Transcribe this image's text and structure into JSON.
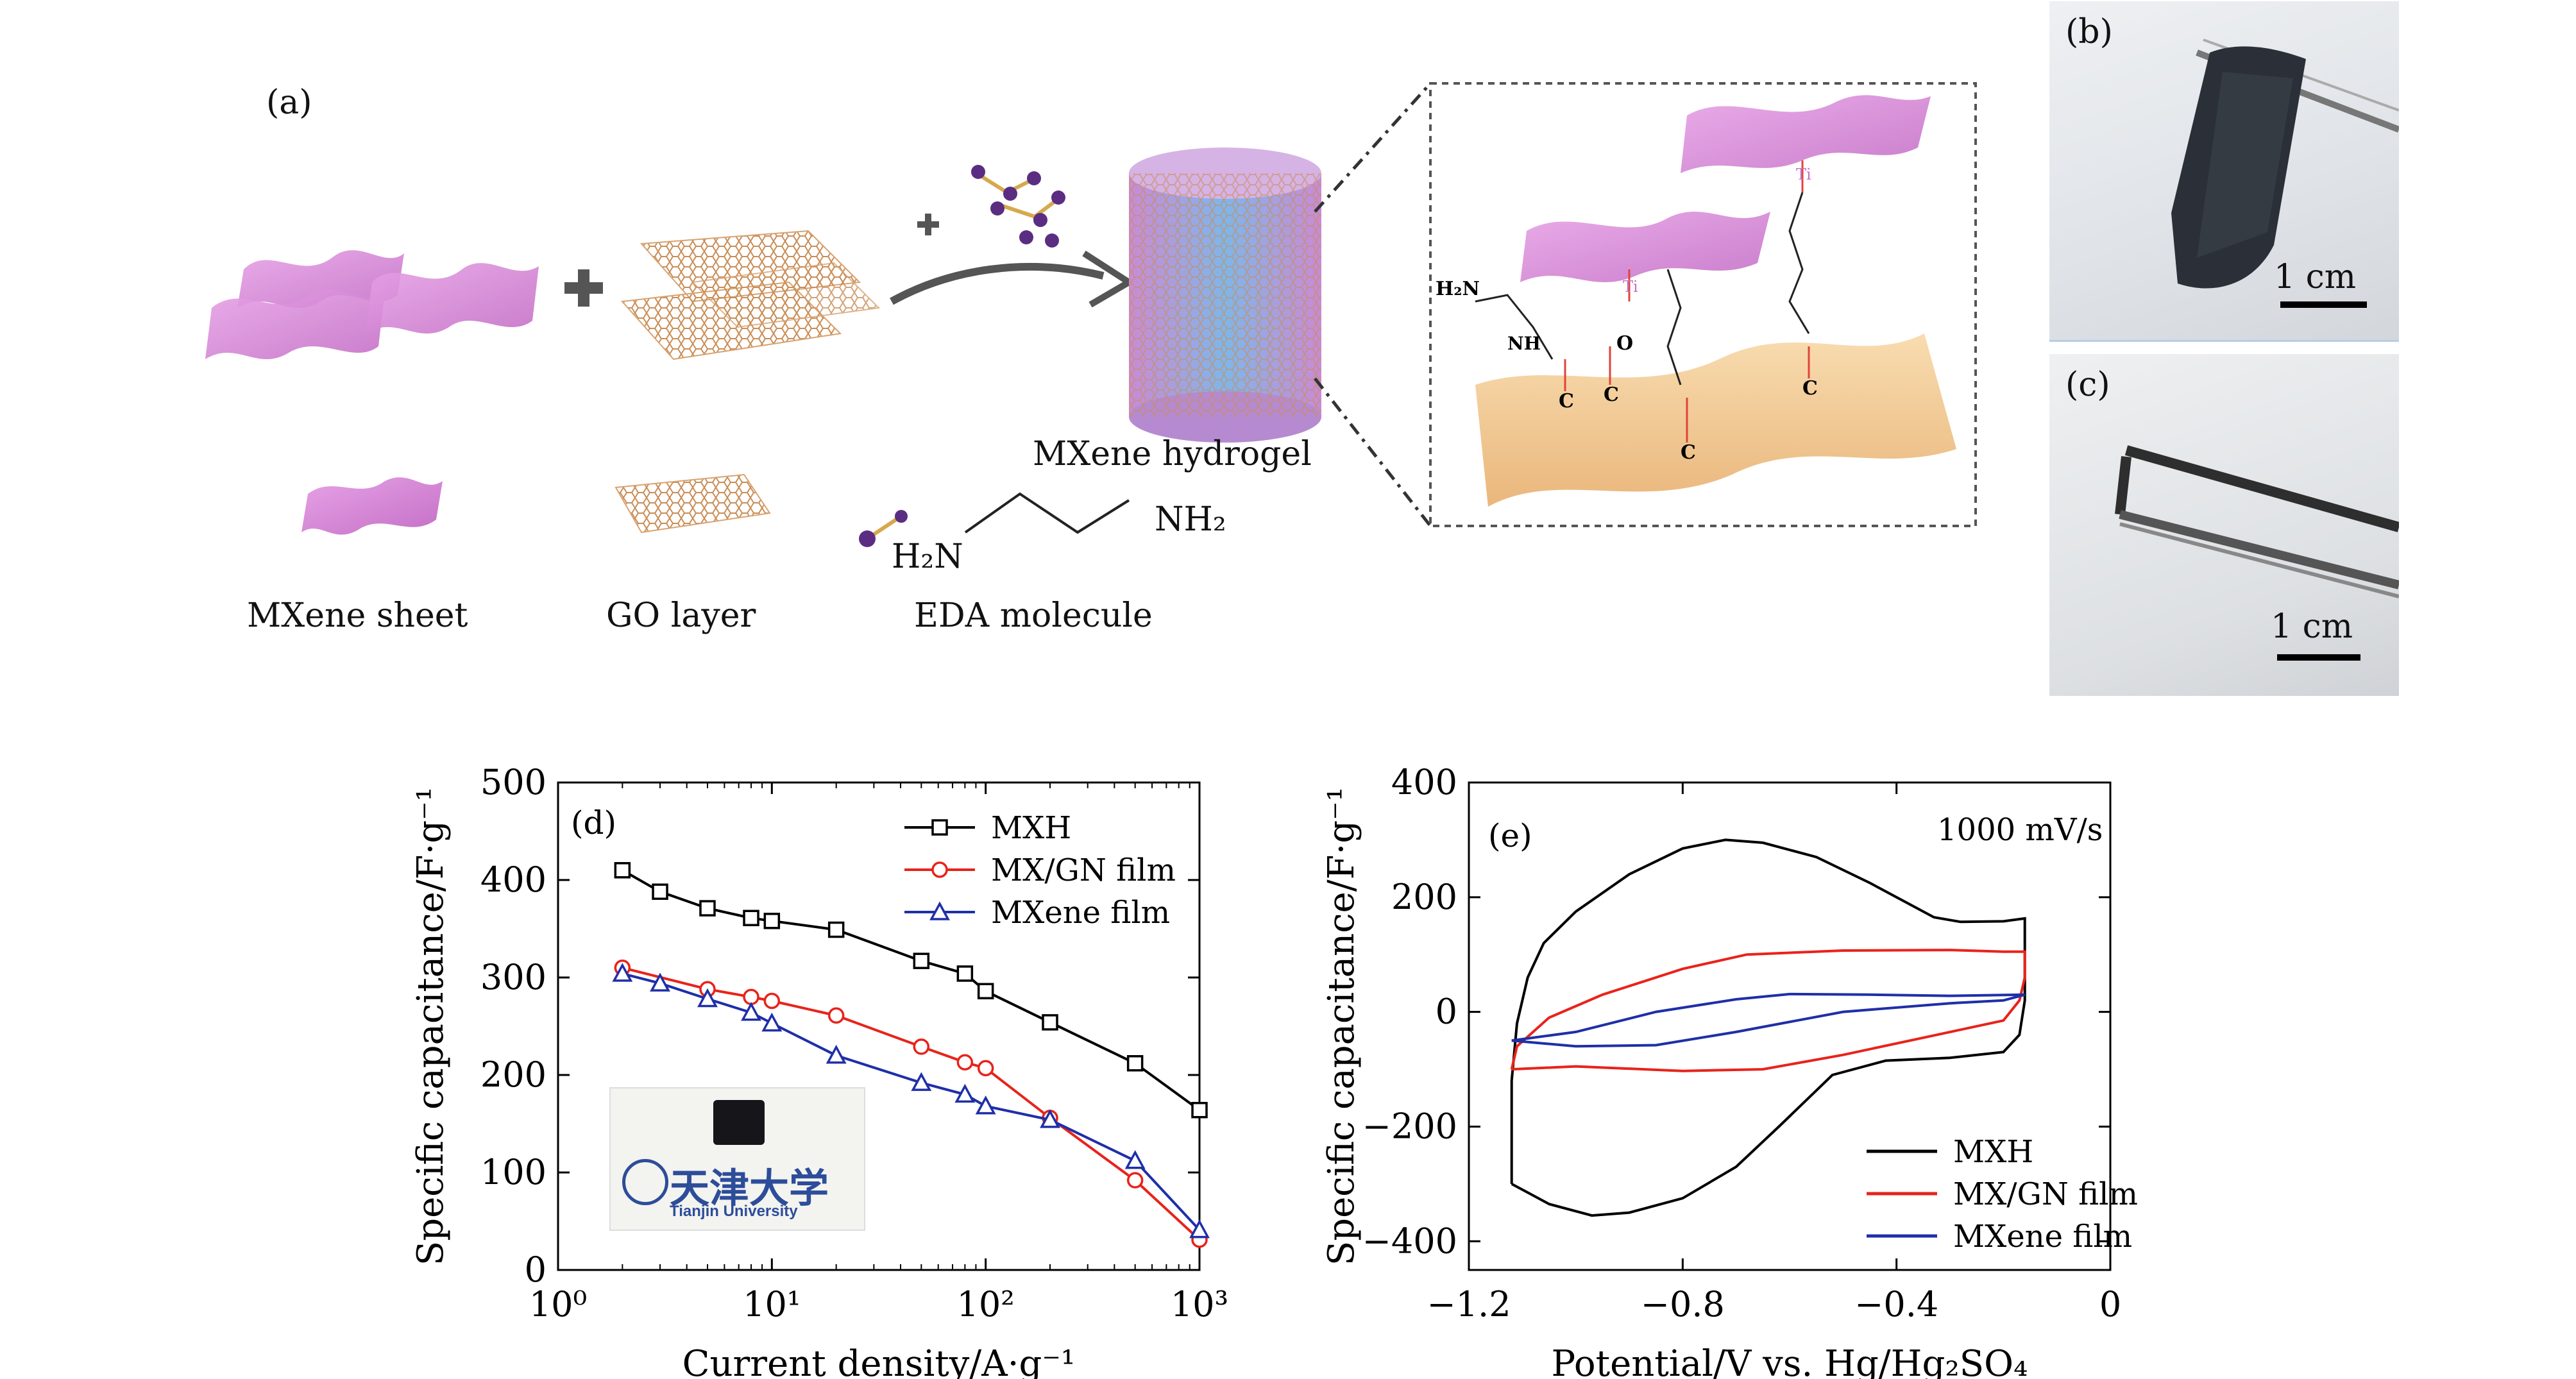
{
  "panel_a": {
    "label": "(a)",
    "captions": {
      "mxene_sheet": "MXene sheet",
      "go_layer": "GO layer",
      "eda_molecule": "EDA molecule",
      "hydrogel": "MXene hydrogel"
    },
    "eda_formula": {
      "left": "H₂N",
      "right": "NH₂"
    },
    "inset_atoms": {
      "ti": "Ti",
      "o": "O",
      "c": "C",
      "nh": "NH",
      "h2n": "H₂N"
    }
  },
  "panel_b": {
    "label": "(b)",
    "scale": "1 cm"
  },
  "panel_c": {
    "label": "(c)",
    "scale": "1 cm"
  },
  "panel_d": {
    "label": "(d)",
    "logo_text": "天津大学",
    "logo_subtext": "Tianjin University"
  },
  "panel_e": {
    "label": "(e)",
    "annotation": "1000 mV/s"
  },
  "colors": {
    "mxh": "#000000",
    "mxgn": "#e8231b",
    "mxene": "#1f2fa8",
    "mxene_pink": "#d889d8",
    "go_tan": "#d9a271"
  },
  "chart_data": [
    {
      "type": "line",
      "xlabel": "Current density/A·g⁻¹",
      "ylabel": "Specific capacitance/F·g⁻¹",
      "xscale": "log",
      "xlim": [
        1,
        1000
      ],
      "ylim": [
        0,
        500
      ],
      "xticks": [
        1,
        10,
        100,
        1000
      ],
      "xtick_labels": [
        "10⁰",
        "10¹",
        "10²",
        "10³"
      ],
      "yticks": [
        0,
        100,
        200,
        300,
        400,
        500
      ],
      "legend_position": "top-right",
      "series": [
        {
          "name": "MXH",
          "marker": "square",
          "color": "#000000",
          "points": [
            [
              2,
              410
            ],
            [
              3,
              388
            ],
            [
              5,
              371
            ],
            [
              8,
              361
            ],
            [
              10,
              358
            ],
            [
              20,
              349
            ],
            [
              50,
              317
            ],
            [
              80,
              304
            ],
            [
              100,
              286
            ],
            [
              200,
              254
            ],
            [
              500,
              212
            ],
            [
              1000,
              164
            ]
          ]
        },
        {
          "name": "MX/GN film",
          "marker": "circle",
          "color": "#e8231b",
          "points": [
            [
              2,
              310
            ],
            [
              5,
              288
            ],
            [
              8,
              280
            ],
            [
              10,
              276
            ],
            [
              20,
              261
            ],
            [
              50,
              229
            ],
            [
              80,
              213
            ],
            [
              100,
              207
            ],
            [
              200,
              156
            ],
            [
              500,
              92
            ],
            [
              1000,
              31
            ]
          ]
        },
        {
          "name": "MXene film",
          "marker": "triangle",
          "color": "#1f2fa8",
          "points": [
            [
              2,
              304
            ],
            [
              3,
              294
            ],
            [
              5,
              278
            ],
            [
              8,
              264
            ],
            [
              10,
              253
            ],
            [
              20,
              220
            ],
            [
              50,
              192
            ],
            [
              80,
              180
            ],
            [
              100,
              168
            ],
            [
              200,
              154
            ],
            [
              500,
              112
            ],
            [
              1000,
              41
            ]
          ]
        }
      ]
    },
    {
      "type": "line",
      "xlabel": "Potential/V vs. Hg/Hg₂SO₄",
      "ylabel": "Specific capacitance/F·g⁻¹",
      "xlim": [
        -1.2,
        0
      ],
      "ylim": [
        -450,
        400
      ],
      "xticks": [
        -1.2,
        -0.8,
        -0.4,
        0
      ],
      "xtick_labels": [
        "−1.2",
        "−0.8",
        "−0.4",
        "0"
      ],
      "yticks": [
        -400,
        -200,
        0,
        200,
        400
      ],
      "ytick_labels": [
        "−400",
        "−200",
        "0",
        "200",
        "400"
      ],
      "legend_position": "bottom-right",
      "series": [
        {
          "name": "MXH",
          "color": "#000000",
          "points": [
            [
              -1.12,
              -300
            ],
            [
              -1.12,
              -230
            ],
            [
              -1.12,
              -120
            ],
            [
              -1.11,
              -20
            ],
            [
              -1.09,
              60
            ],
            [
              -1.06,
              120
            ],
            [
              -1.0,
              175
            ],
            [
              -0.9,
              240
            ],
            [
              -0.8,
              285
            ],
            [
              -0.72,
              300
            ],
            [
              -0.65,
              295
            ],
            [
              -0.55,
              270
            ],
            [
              -0.45,
              225
            ],
            [
              -0.38,
              190
            ],
            [
              -0.33,
              165
            ],
            [
              -0.28,
              157
            ],
            [
              -0.2,
              158
            ],
            [
              -0.16,
              163
            ],
            [
              -0.16,
              100
            ],
            [
              -0.16,
              20
            ],
            [
              -0.17,
              -40
            ],
            [
              -0.2,
              -70
            ],
            [
              -0.3,
              -80
            ],
            [
              -0.42,
              -85
            ],
            [
              -0.52,
              -110
            ],
            [
              -0.62,
              -200
            ],
            [
              -0.7,
              -270
            ],
            [
              -0.8,
              -325
            ],
            [
              -0.9,
              -350
            ],
            [
              -0.97,
              -355
            ],
            [
              -1.05,
              -335
            ],
            [
              -1.1,
              -310
            ],
            [
              -1.12,
              -300
            ]
          ]
        },
        {
          "name": "MX/GN film",
          "color": "#e8231b",
          "points": [
            [
              -1.12,
              -100
            ],
            [
              -1.11,
              -60
            ],
            [
              -1.05,
              -10
            ],
            [
              -0.95,
              30
            ],
            [
              -0.8,
              75
            ],
            [
              -0.68,
              100
            ],
            [
              -0.5,
              107
            ],
            [
              -0.3,
              108
            ],
            [
              -0.2,
              105
            ],
            [
              -0.16,
              105
            ],
            [
              -0.16,
              60
            ],
            [
              -0.17,
              20
            ],
            [
              -0.2,
              -15
            ],
            [
              -0.35,
              -45
            ],
            [
              -0.5,
              -75
            ],
            [
              -0.65,
              -100
            ],
            [
              -0.8,
              -103
            ],
            [
              -1.0,
              -95
            ],
            [
              -1.12,
              -100
            ]
          ]
        },
        {
          "name": "MXene film",
          "color": "#1f2fa8",
          "points": [
            [
              -1.12,
              -50
            ],
            [
              -1.0,
              -35
            ],
            [
              -0.85,
              0
            ],
            [
              -0.7,
              22
            ],
            [
              -0.6,
              31
            ],
            [
              -0.45,
              30
            ],
            [
              -0.3,
              28
            ],
            [
              -0.16,
              30
            ],
            [
              -0.2,
              20
            ],
            [
              -0.3,
              15
            ],
            [
              -0.5,
              0
            ],
            [
              -0.7,
              -35
            ],
            [
              -0.85,
              -58
            ],
            [
              -1.0,
              -60
            ],
            [
              -1.12,
              -50
            ]
          ]
        }
      ]
    }
  ]
}
